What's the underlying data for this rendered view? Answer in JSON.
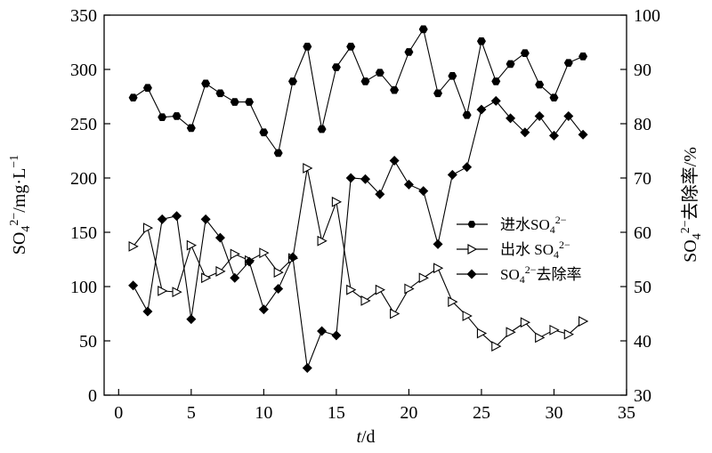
{
  "chart_data": {
    "type": "line",
    "xlabel": "t/d",
    "ylabel_left": "SO4²⁻/mg·L⁻¹",
    "ylabel_right": "SO4²⁻去除率/%",
    "xlim": [
      -1,
      35
    ],
    "ylim_left": [
      0,
      350
    ],
    "ylim_right": [
      30,
      100
    ],
    "x_ticks": [
      0,
      5,
      10,
      15,
      20,
      25,
      30,
      35
    ],
    "y_ticks_left": [
      0,
      50,
      100,
      150,
      200,
      250,
      300,
      350
    ],
    "y_ticks_right": [
      30,
      40,
      50,
      60,
      70,
      80,
      90,
      100
    ],
    "grid": false,
    "legend_position": "right-middle",
    "series": [
      {
        "name": "进水SO4²⁻",
        "axis": "left",
        "marker": "hexagon-filled",
        "x": [
          1,
          2,
          3,
          4,
          5,
          6,
          7,
          8,
          9,
          10,
          11,
          12,
          13,
          14,
          15,
          16,
          17,
          18,
          19,
          20,
          21,
          22,
          23,
          24,
          25,
          26,
          27,
          28,
          29,
          30,
          31,
          32
        ],
        "values": [
          274,
          283,
          256,
          257,
          246,
          287,
          278,
          270,
          270,
          242,
          223,
          289,
          321,
          245,
          302,
          321,
          289,
          297,
          281,
          316,
          337,
          278,
          294,
          258,
          326,
          289,
          305,
          315,
          286,
          274,
          306,
          312
        ]
      },
      {
        "name": "出水 SO4²⁻",
        "axis": "left",
        "marker": "triangle-right-open",
        "x": [
          1,
          2,
          3,
          4,
          5,
          6,
          7,
          8,
          9,
          10,
          11,
          12,
          13,
          14,
          15,
          16,
          17,
          18,
          19,
          20,
          21,
          22,
          23,
          24,
          25,
          26,
          27,
          28,
          29,
          30,
          31,
          32
        ],
        "values": [
          137,
          154,
          96,
          95,
          138,
          108,
          114,
          130,
          124,
          131,
          113,
          126,
          209,
          142,
          178,
          97,
          87,
          97,
          75,
          98,
          108,
          117,
          86,
          73,
          57,
          45,
          58,
          67,
          53,
          60,
          56,
          68
        ]
      },
      {
        "name": "SO4²⁻去除率",
        "axis": "right",
        "marker": "diamond-filled",
        "x": [
          1,
          2,
          3,
          4,
          5,
          6,
          7,
          8,
          9,
          10,
          11,
          12,
          13,
          14,
          15,
          16,
          17,
          18,
          19,
          20,
          21,
          22,
          23,
          24,
          25,
          26,
          27,
          28,
          29,
          30,
          31,
          32
        ],
        "values": [
          50.2,
          45.4,
          62.4,
          63.0,
          44.0,
          62.4,
          59.0,
          51.6,
          54.6,
          45.8,
          49.6,
          55.4,
          35.0,
          41.8,
          41.0,
          70.0,
          69.8,
          67.0,
          73.2,
          68.8,
          67.6,
          57.8,
          70.6,
          72.0,
          82.6,
          84.2,
          81.0,
          78.4,
          81.4,
          77.8,
          81.4,
          78.0
        ]
      }
    ]
  }
}
